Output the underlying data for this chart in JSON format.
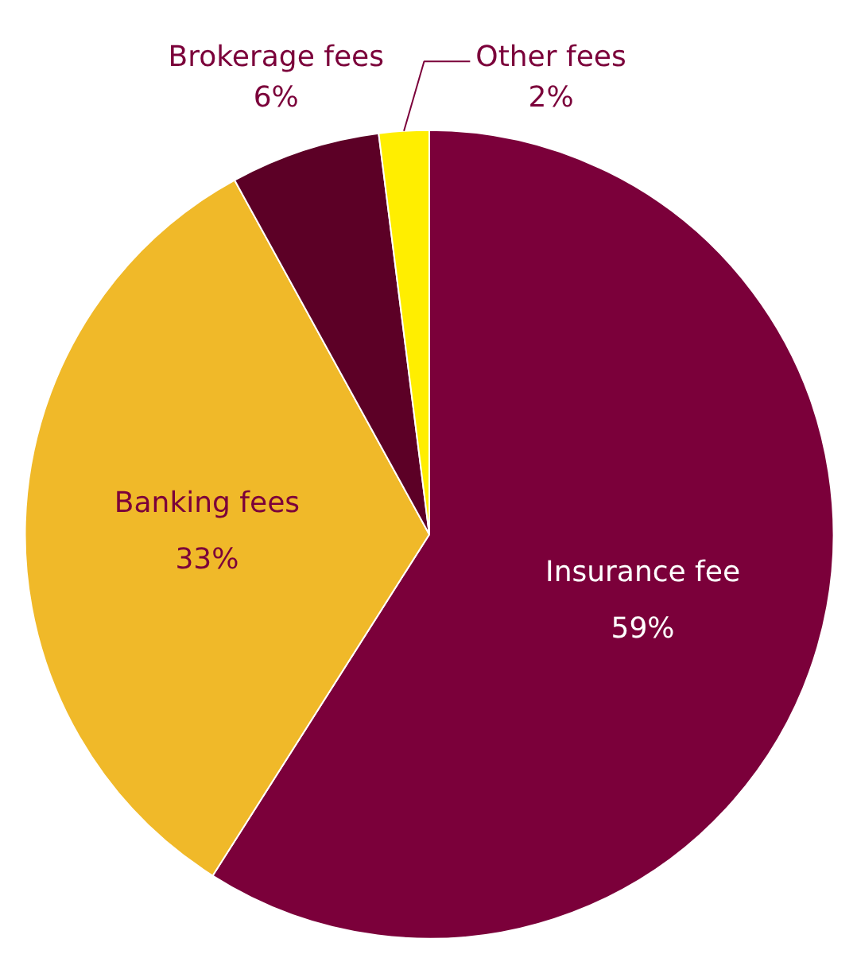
{
  "chart_data": {
    "type": "pie",
    "categories": [
      "Insurance fee",
      "Banking fees",
      "Brokerage fees",
      "Other fees"
    ],
    "values": [
      59,
      33,
      6,
      2
    ],
    "value_labels": [
      "59%",
      "33%",
      "6%",
      "2%"
    ],
    "colors": [
      "#7b003a",
      "#f0b929",
      "#5c0026",
      "#ffee00"
    ]
  }
}
